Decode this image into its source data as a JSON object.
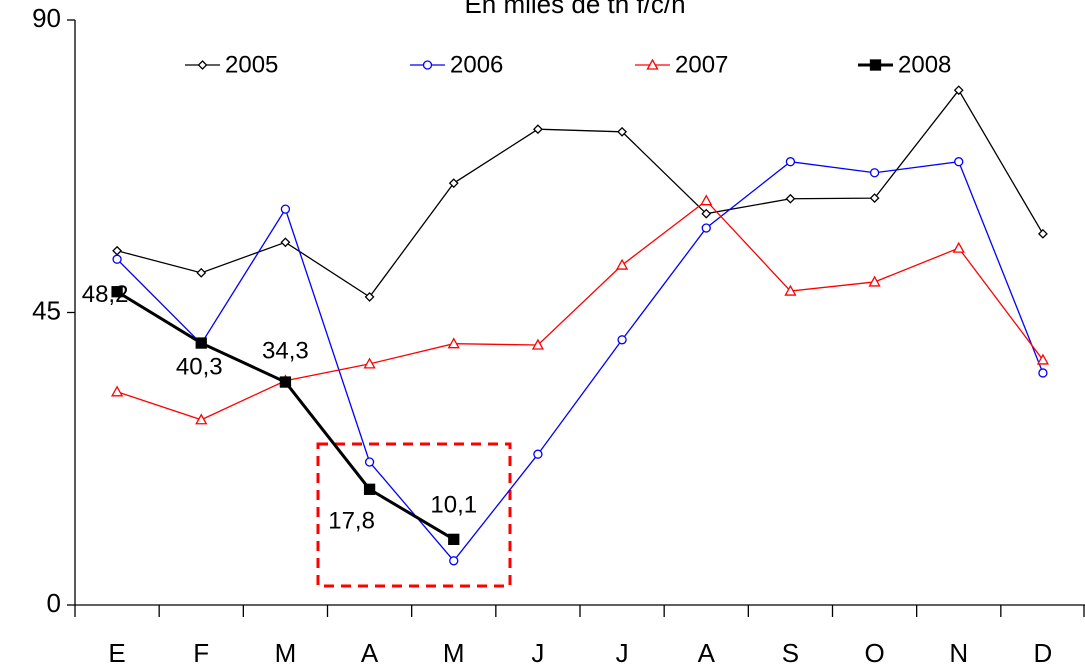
{
  "chart_data": {
    "type": "line",
    "title": "En miles de tn f/c/h",
    "categories": [
      "E",
      "F",
      "M",
      "A",
      "M",
      "J",
      "J",
      "A",
      "S",
      "O",
      "N",
      "D"
    ],
    "ylim": [
      0,
      90
    ],
    "yticks": [
      0,
      45,
      90
    ],
    "series": [
      {
        "name": "2005",
        "color": "#000000",
        "marker": "diamond",
        "line_width": 1.3,
        "values": [
          54.5,
          51.1,
          55.8,
          47.4,
          64.9,
          73.2,
          72.8,
          60.2,
          62.5,
          62.6,
          79.2,
          57.1
        ]
      },
      {
        "name": "2006",
        "color": "#0000ff",
        "marker": "circle",
        "line_width": 1.3,
        "values": [
          53.2,
          40.2,
          60.9,
          22.0,
          6.8,
          23.2,
          40.8,
          58.0,
          68.2,
          66.5,
          68.2,
          35.7
        ]
      },
      {
        "name": "2007",
        "color": "#ff0000",
        "marker": "triangle",
        "line_width": 1.3,
        "values": [
          32.8,
          28.5,
          34.5,
          37.1,
          40.2,
          40.0,
          52.3,
          62.2,
          48.3,
          49.7,
          54.9,
          37.7
        ]
      },
      {
        "name": "2008",
        "color": "#000000",
        "marker": "square",
        "line_width": 3,
        "values": [
          48.2,
          40.3,
          34.3,
          17.8,
          10.1,
          null,
          null,
          null,
          null,
          null,
          null,
          null
        ],
        "value_labels": [
          "48,2",
          "40,3",
          "34,3",
          "17,8",
          "10,1",
          null,
          null,
          null,
          null,
          null,
          null,
          null
        ]
      }
    ]
  }
}
